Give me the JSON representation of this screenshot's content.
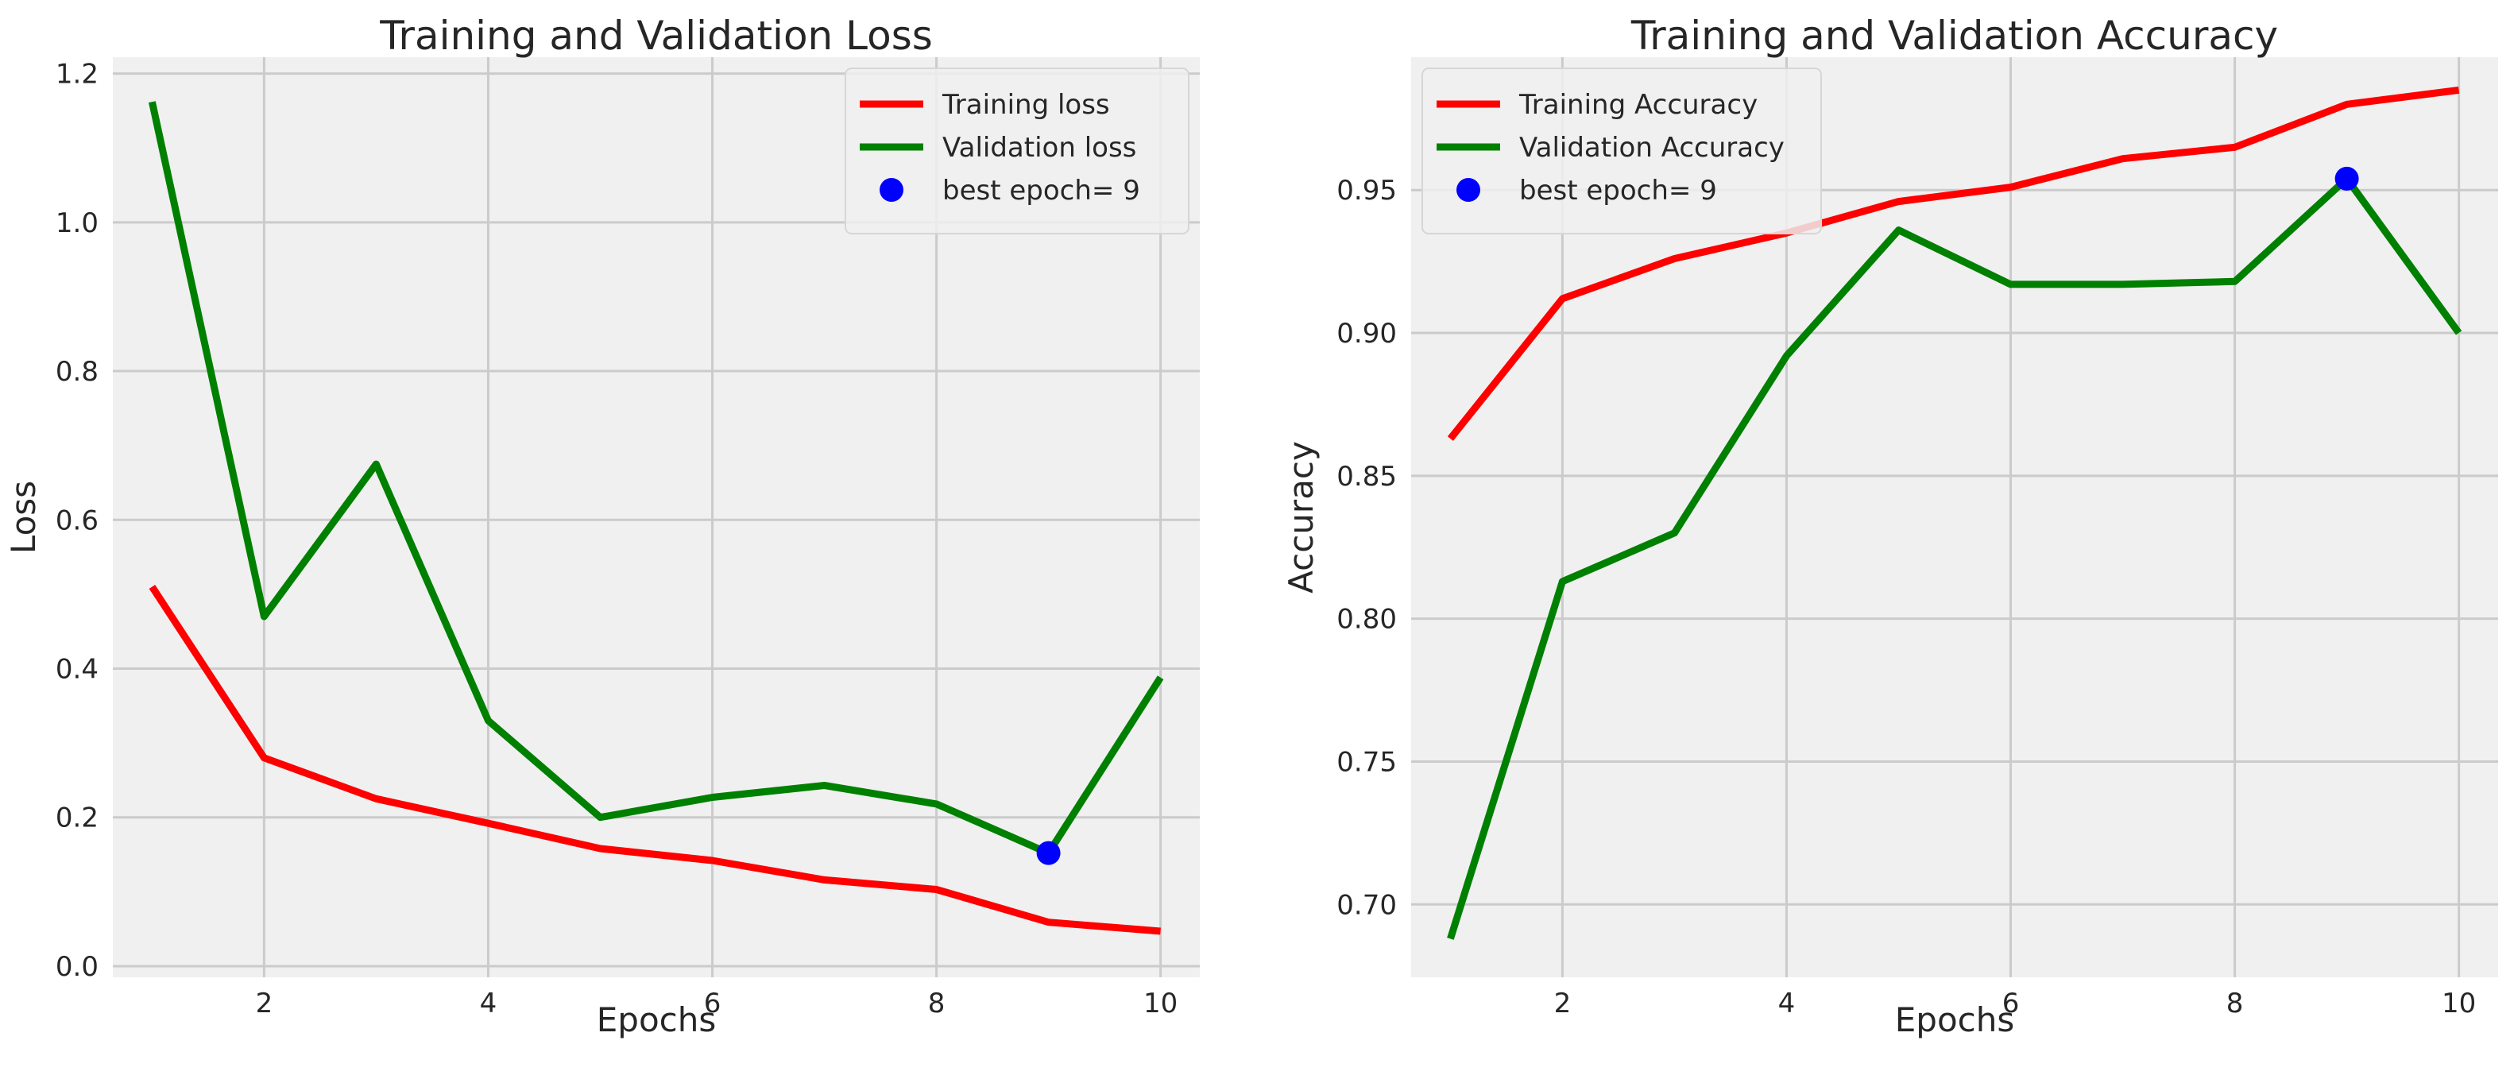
{
  "chart_data": [
    {
      "type": "line",
      "title": "Training and Validation Loss",
      "xlabel": "Epochs",
      "ylabel": "Loss",
      "xlim": [
        0.65,
        10.35
      ],
      "ylim": [
        -0.015,
        1.222
      ],
      "xticks": [
        2,
        4,
        6,
        8,
        10
      ],
      "xtick_labels": [
        "2",
        "4",
        "6",
        "8",
        "10"
      ],
      "yticks": [
        0.0,
        0.2,
        0.4,
        0.6,
        0.8,
        1.0,
        1.2
      ],
      "ytick_labels": [
        "0.0",
        "0.2",
        "0.4",
        "0.6",
        "0.8",
        "1.0",
        "1.2"
      ],
      "grid": true,
      "legend_position": "top-right",
      "x": [
        1,
        2,
        3,
        4,
        5,
        6,
        7,
        8,
        9,
        10
      ],
      "series": [
        {
          "name": "Training loss",
          "color": "#ff0000",
          "values": [
            0.51,
            0.28,
            0.225,
            0.192,
            0.158,
            0.142,
            0.116,
            0.103,
            0.059,
            0.047
          ]
        },
        {
          "name": "Validation loss",
          "color": "#008000",
          "values": [
            1.162,
            0.47,
            0.675,
            0.33,
            0.2,
            0.227,
            0.243,
            0.218,
            0.152,
            0.388
          ]
        }
      ],
      "best_point": {
        "label": "best epoch= 9",
        "x": 9,
        "y": 0.152,
        "color": "#0000ff"
      }
    },
    {
      "type": "line",
      "title": "Training and Validation Accuracy",
      "xlabel": "Epochs",
      "ylabel": "Accuracy",
      "xlim": [
        0.65,
        10.35
      ],
      "ylim": [
        0.6745,
        0.9965
      ],
      "xticks": [
        2,
        4,
        6,
        8,
        10
      ],
      "xtick_labels": [
        "2",
        "4",
        "6",
        "8",
        "10"
      ],
      "yticks": [
        0.7,
        0.75,
        0.8,
        0.85,
        0.9,
        0.95
      ],
      "ytick_labels": [
        "0.70",
        "0.75",
        "0.80",
        "0.85",
        "0.90",
        "0.95"
      ],
      "grid": true,
      "legend_position": "top-left",
      "x": [
        1,
        2,
        3,
        4,
        5,
        6,
        7,
        8,
        9,
        10
      ],
      "series": [
        {
          "name": "Training Accuracy",
          "color": "#ff0000",
          "values": [
            0.863,
            0.912,
            0.926,
            0.935,
            0.946,
            0.951,
            0.961,
            0.965,
            0.98,
            0.985
          ]
        },
        {
          "name": "Validation Accuracy",
          "color": "#008000",
          "values": [
            0.688,
            0.813,
            0.83,
            0.892,
            0.936,
            0.917,
            0.917,
            0.918,
            0.954,
            0.9
          ]
        }
      ],
      "best_point": {
        "label": "best epoch= 9",
        "x": 9,
        "y": 0.954,
        "color": "#0000ff"
      }
    }
  ]
}
